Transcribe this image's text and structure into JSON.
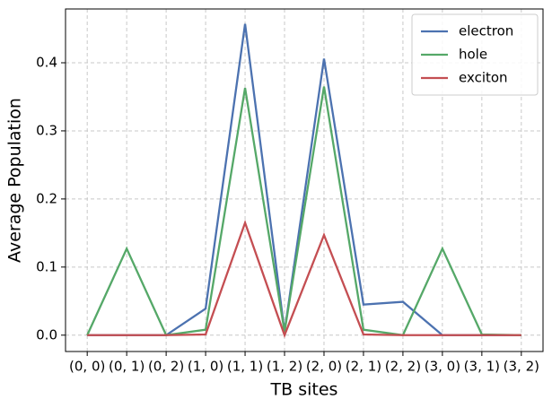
{
  "chart_data": {
    "type": "line",
    "xlabel": "TB sites",
    "ylabel": "Average Population",
    "categories": [
      "(0, 0)",
      "(0, 1)",
      "(0, 2)",
      "(1, 0)",
      "(1, 1)",
      "(1, 2)",
      "(2, 0)",
      "(2, 1)",
      "(2, 2)",
      "(3, 0)",
      "(3, 1)",
      "(3, 2)"
    ],
    "series": [
      {
        "name": "electron",
        "color": "#4c72b0",
        "values": [
          0,
          0,
          0,
          0.039,
          0.457,
          0.005,
          0.406,
          0.045,
          0.049,
          0,
          0,
          0
        ]
      },
      {
        "name": "hole",
        "color": "#55a868",
        "values": [
          0,
          0.127,
          0,
          0.008,
          0.363,
          0.005,
          0.365,
          0.008,
          0,
          0.127,
          0.001,
          0
        ]
      },
      {
        "name": "exciton",
        "color": "#c44e52",
        "values": [
          0,
          0,
          0,
          0.001,
          0.165,
          0,
          0.147,
          0.001,
          0,
          0,
          0,
          0
        ]
      }
    ],
    "ylim": [
      -0.024,
      0.479
    ],
    "yticks": [
      {
        "value": 0,
        "label": "0.0"
      },
      0.1,
      0.2,
      0.3,
      0.4
    ],
    "grid": true,
    "legend": "upper right"
  }
}
